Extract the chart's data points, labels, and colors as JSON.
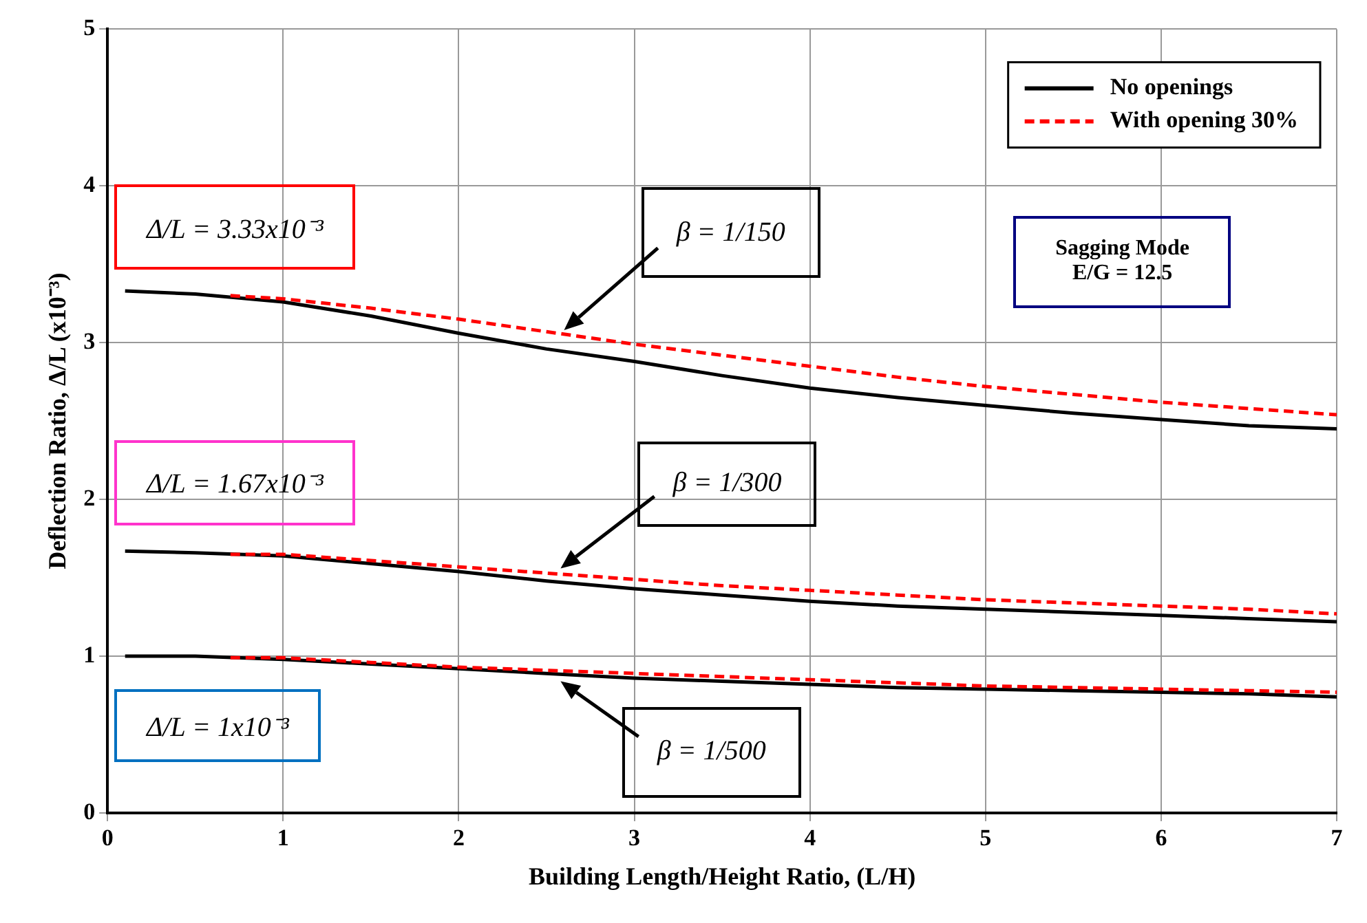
{
  "chart_data": {
    "type": "line",
    "xlabel": "Building Length/Height Ratio, (L/H)",
    "ylabel": "Deflection Ratio, Δ/L (x10⁻³)",
    "xlim": [
      0,
      7
    ],
    "xticks": [
      0,
      1,
      2,
      3,
      4,
      5,
      6,
      7
    ],
    "ylim": [
      0,
      5
    ],
    "yticks": [
      0,
      1,
      2,
      3,
      4,
      5
    ],
    "grid": true,
    "legend": "top right",
    "marker": "none",
    "series": [
      {
        "name": "No openings",
        "color": "#000000",
        "line_style": "solid",
        "x": [
          0.1,
          0.5,
          1,
          1.5,
          2,
          2.5,
          3,
          3.5,
          4,
          4.5,
          5,
          5.5,
          6,
          6.5,
          7
        ],
        "values": [
          3.33,
          3.31,
          3.26,
          3.17,
          3.06,
          2.96,
          2.88,
          2.79,
          2.71,
          2.65,
          2.6,
          2.55,
          2.51,
          2.47,
          2.45
        ]
      },
      {
        "name": "With opening 30%",
        "color": "#ff0000",
        "line_style": "dashed",
        "x": [
          0.7,
          1,
          1.5,
          2,
          2.5,
          3,
          3.5,
          4,
          4.5,
          5,
          5.5,
          6,
          6.5,
          7
        ],
        "values": [
          3.3,
          3.28,
          3.22,
          3.15,
          3.07,
          2.99,
          2.92,
          2.85,
          2.78,
          2.72,
          2.67,
          2.62,
          2.58,
          2.54
        ]
      },
      {
        "color": "#000000",
        "line_style": "solid",
        "x": [
          0.1,
          0.5,
          1,
          1.5,
          2,
          2.5,
          3,
          3.5,
          4,
          4.5,
          5,
          5.5,
          6,
          6.5,
          7
        ],
        "values": [
          1.67,
          1.66,
          1.64,
          1.59,
          1.54,
          1.48,
          1.43,
          1.39,
          1.35,
          1.32,
          1.3,
          1.28,
          1.26,
          1.24,
          1.22
        ]
      },
      {
        "color": "#ff0000",
        "line_style": "dashed",
        "x": [
          0.7,
          1,
          1.5,
          2,
          2.5,
          3,
          3.5,
          4,
          4.5,
          5,
          5.5,
          6,
          6.5,
          7
        ],
        "values": [
          1.65,
          1.65,
          1.61,
          1.57,
          1.53,
          1.49,
          1.45,
          1.42,
          1.39,
          1.36,
          1.34,
          1.32,
          1.3,
          1.27
        ]
      },
      {
        "color": "#000000",
        "line_style": "solid",
        "x": [
          0.1,
          0.5,
          1,
          1.5,
          2,
          2.5,
          3,
          3.5,
          4,
          4.5,
          5,
          5.5,
          6,
          6.5,
          7
        ],
        "values": [
          1.0,
          1.0,
          0.98,
          0.95,
          0.92,
          0.89,
          0.86,
          0.84,
          0.82,
          0.8,
          0.79,
          0.78,
          0.77,
          0.76,
          0.74
        ]
      },
      {
        "color": "#ff0000",
        "line_style": "dashed",
        "x": [
          0.7,
          1,
          1.5,
          2,
          2.5,
          3,
          3.5,
          4,
          4.5,
          5,
          5.5,
          6,
          6.5,
          7
        ],
        "values": [
          0.99,
          0.99,
          0.96,
          0.93,
          0.91,
          0.89,
          0.87,
          0.85,
          0.83,
          0.81,
          0.8,
          0.79,
          0.78,
          0.77
        ]
      }
    ],
    "annotations": [
      "Δ/L = 3.33x10⁻³",
      "Δ/L = 1.67x10⁻³",
      "Δ/L = 1x10⁻³",
      "β = 1/150",
      "β = 1/300",
      "β = 1/500",
      "Sagging Mode",
      "E/G = 12.5"
    ]
  }
}
